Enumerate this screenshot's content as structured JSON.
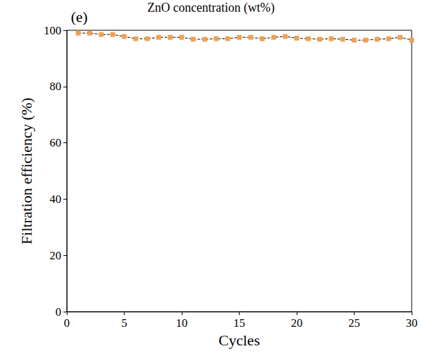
{
  "chart_data": {
    "type": "line",
    "title": "(e)",
    "annotations": [
      "ZnO concentration (wt%)"
    ],
    "x_label": "Cycles",
    "y_label": "Filtration efficiency (%)",
    "x": [
      1,
      2,
      3,
      4,
      5,
      6,
      7,
      8,
      9,
      10,
      11,
      12,
      13,
      14,
      15,
      16,
      17,
      18,
      19,
      20,
      21,
      22,
      23,
      24,
      25,
      26,
      27,
      28,
      29,
      30
    ],
    "values": [
      99.0,
      99.0,
      98.5,
      98.5,
      97.8,
      97.0,
      97.0,
      97.5,
      97.5,
      97.5,
      96.8,
      96.8,
      97.0,
      97.0,
      97.5,
      97.5,
      97.0,
      97.5,
      97.8,
      97.2,
      97.0,
      96.8,
      97.0,
      96.8,
      96.5,
      96.5,
      96.8,
      97.0,
      97.5,
      96.5
    ],
    "color": "#f0a050",
    "marker": "square",
    "line_style": "dashed",
    "xlim": [
      0,
      30
    ],
    "xticks": [
      0,
      5,
      10,
      15,
      20,
      25,
      30
    ],
    "ylim": [
      0,
      100
    ],
    "yticks": [
      0,
      20,
      40,
      60,
      80,
      100
    ],
    "grid": false
  }
}
